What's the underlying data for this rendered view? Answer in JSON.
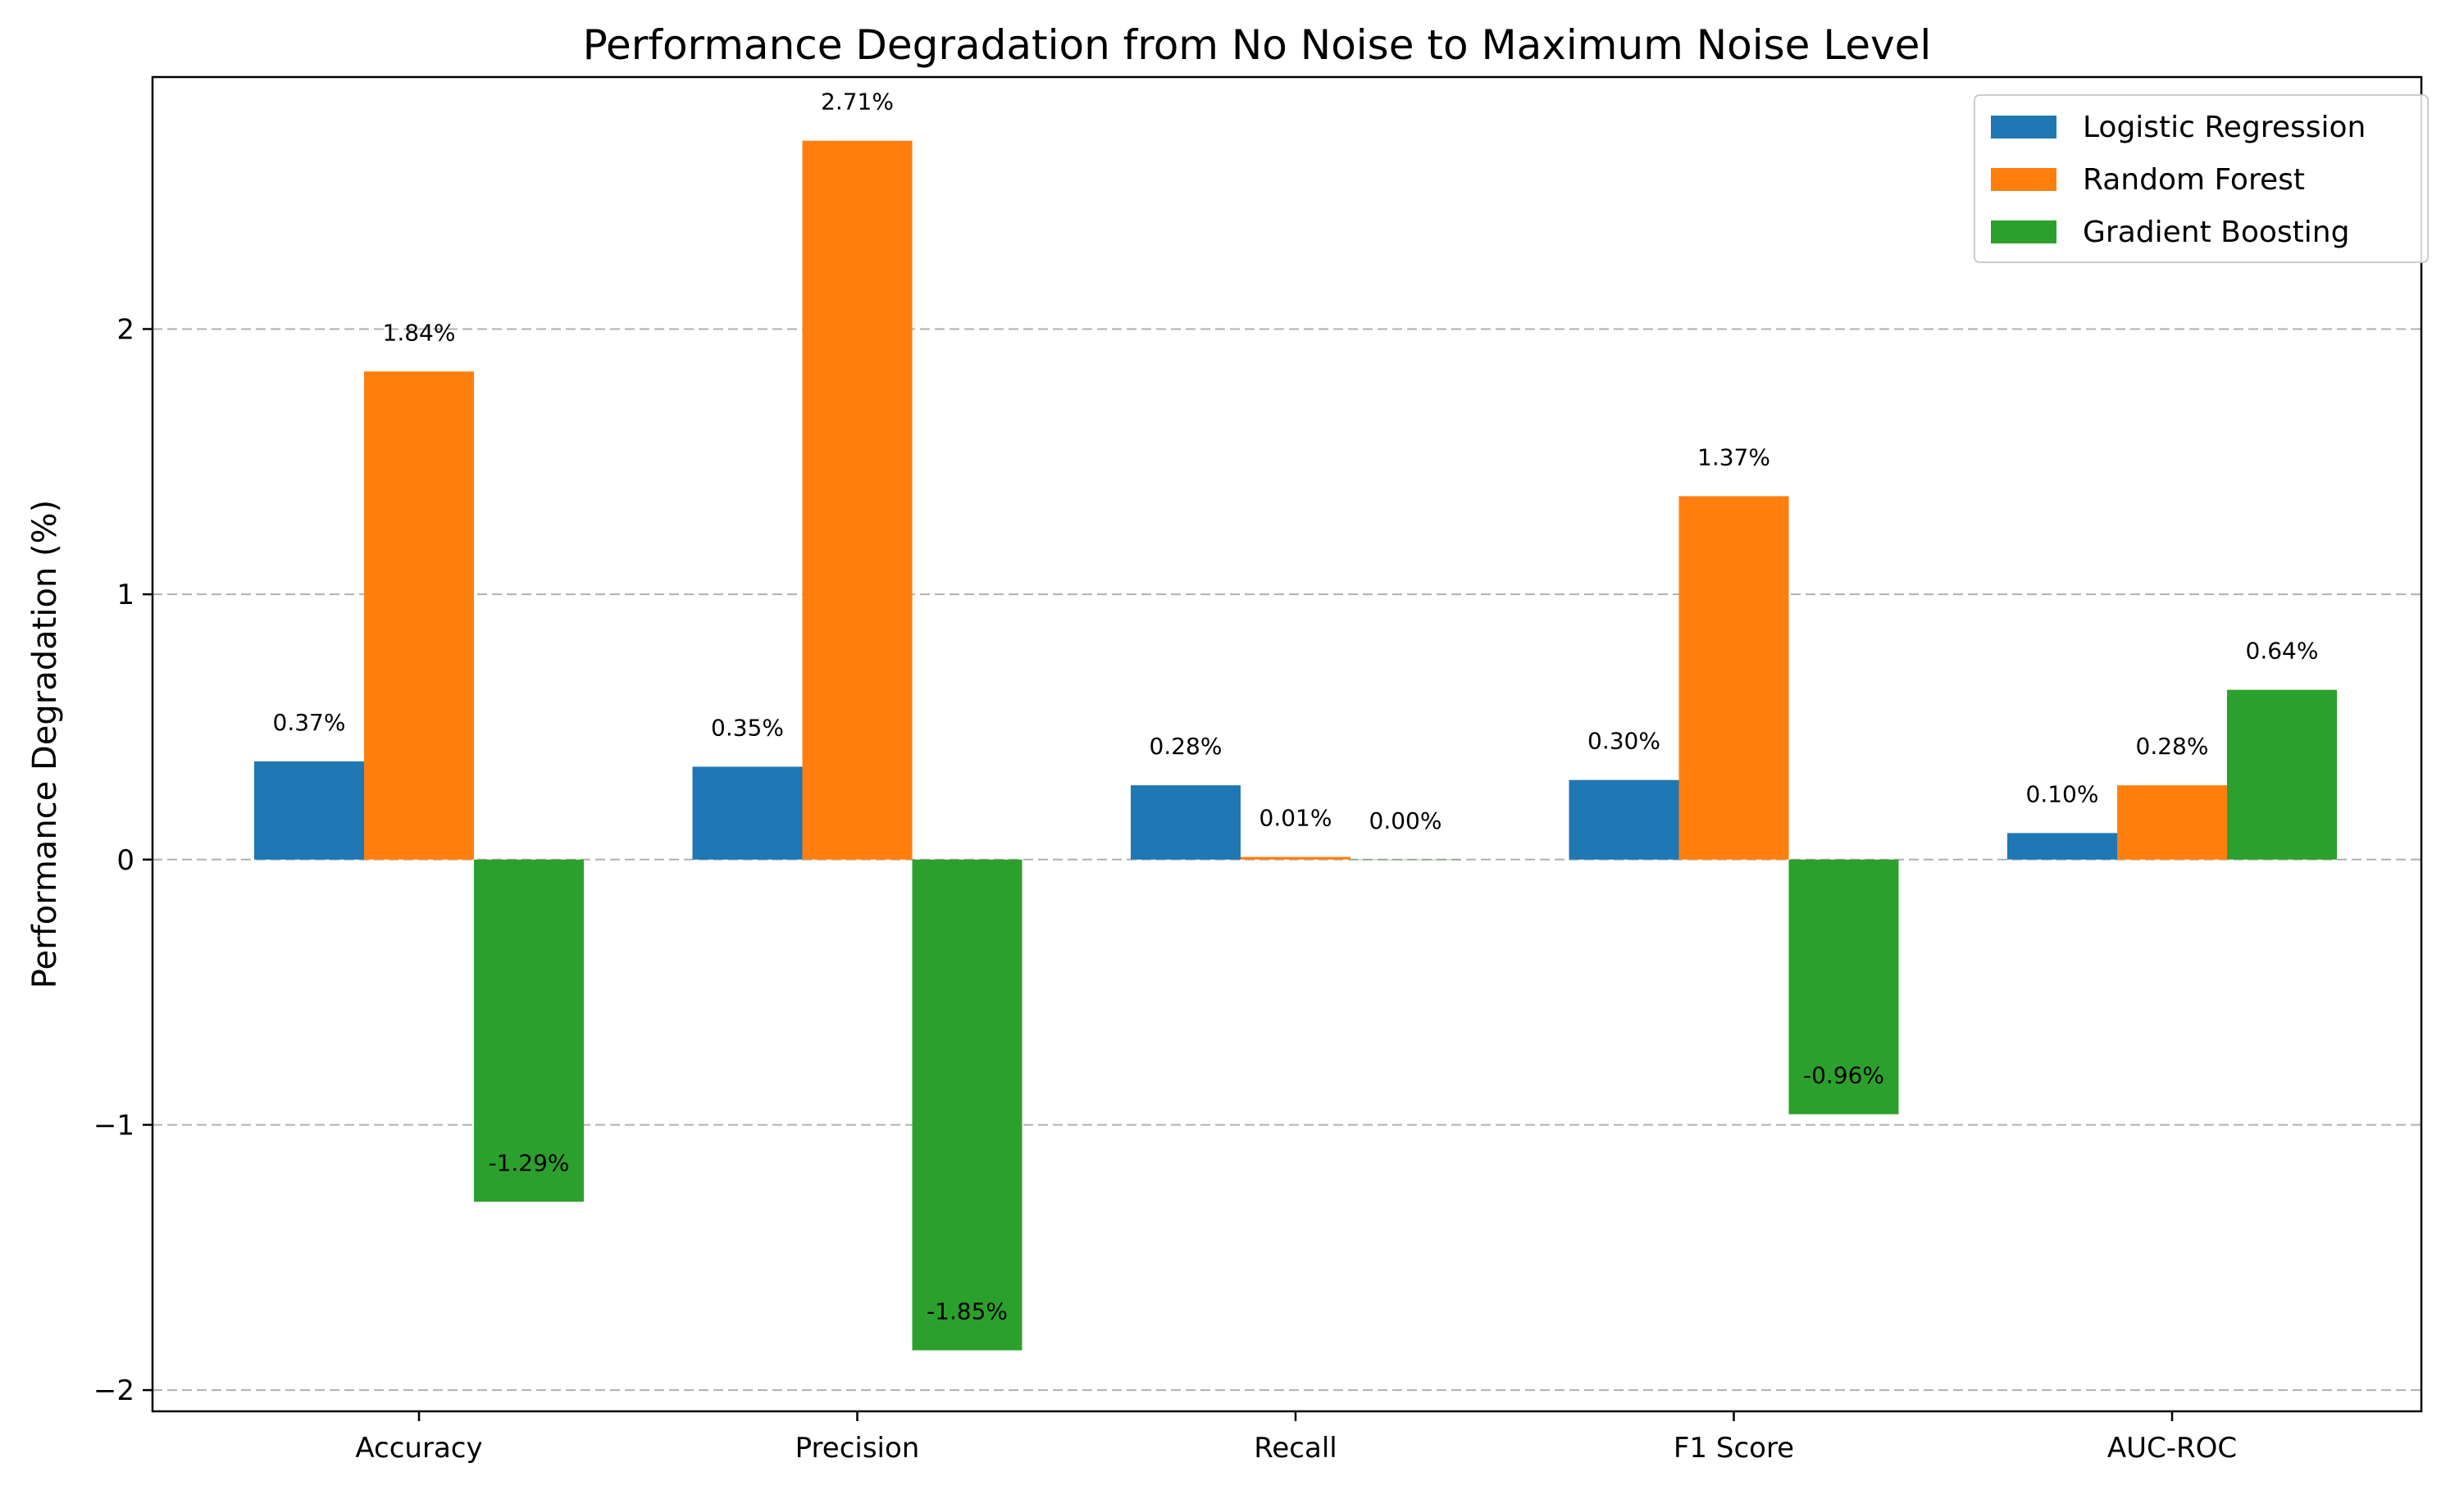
{
  "chart_data": {
    "type": "bar",
    "title": "Performance Degradation from No Noise to Maximum Noise Level",
    "xlabel": "",
    "ylabel": "Performance Degradation (%)",
    "categories": [
      "Accuracy",
      "Precision",
      "Recall",
      "F1 Score",
      "AUC-ROC"
    ],
    "series": [
      {
        "name": "Logistic Regression",
        "color": "#1f77b4",
        "values": [
          0.37,
          0.35,
          0.28,
          0.3,
          0.1
        ],
        "labels": [
          "0.37%",
          "0.35%",
          "0.28%",
          "0.30%",
          "0.10%"
        ]
      },
      {
        "name": "Random Forest",
        "color": "#ff7f0e",
        "values": [
          1.84,
          2.71,
          0.01,
          1.37,
          0.28
        ],
        "labels": [
          "1.84%",
          "2.71%",
          "0.01%",
          "1.37%",
          "0.28%"
        ]
      },
      {
        "name": "Gradient Boosting",
        "color": "#2ca02c",
        "values": [
          -1.29,
          -1.85,
          0.0,
          -0.96,
          0.64
        ],
        "labels": [
          "-1.29%",
          "-1.85%",
          "0.00%",
          "-0.96%",
          "0.64%"
        ]
      }
    ],
    "ylim": [
      -2.08,
      2.95
    ],
    "yticks": [
      -2,
      -1,
      0,
      1,
      2
    ],
    "ytick_labels": [
      "−2",
      "−1",
      "0",
      "1",
      "2"
    ],
    "grid": true,
    "legend_position": "top-right"
  }
}
